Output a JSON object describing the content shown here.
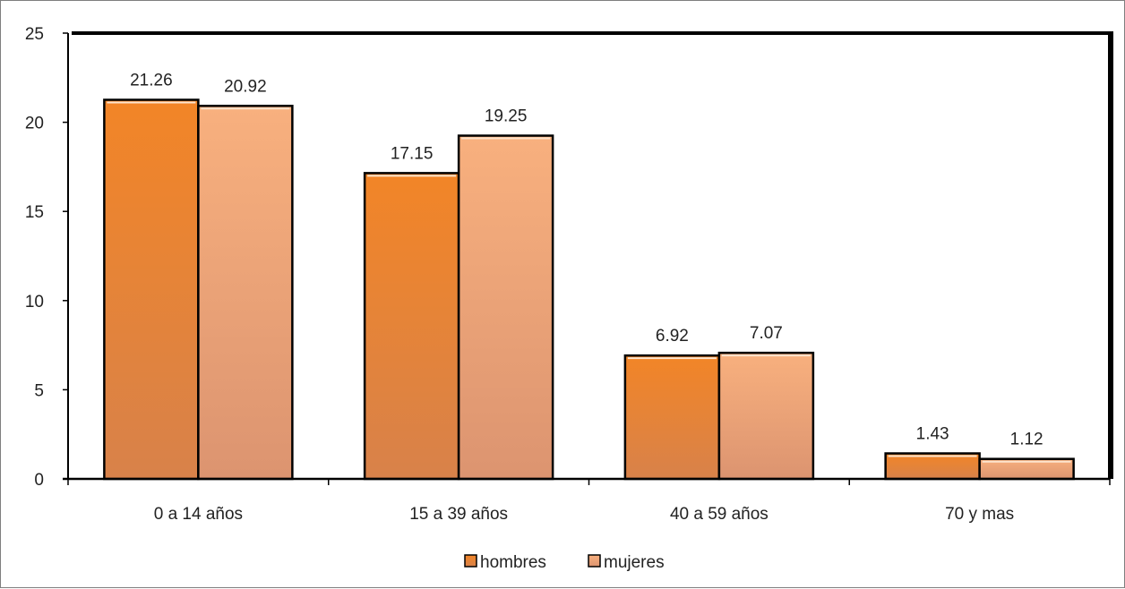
{
  "chart_data": {
    "type": "bar",
    "categories": [
      "0 a 14 años",
      "15 a 39 años",
      "40 a 59 años",
      "70 y mas"
    ],
    "series": [
      {
        "name": "hombres",
        "values": [
          21.26,
          17.15,
          6.92,
          1.43
        ],
        "color": "#F28527",
        "color_dark": "#D8824A"
      },
      {
        "name": "mujeres",
        "values": [
          20.92,
          19.25,
          7.07,
          1.12
        ],
        "color": "#F8B07E",
        "color_dark": "#DC9470"
      }
    ],
    "data_labels": [
      [
        "21.26",
        "17.15",
        "6.92",
        "1.43"
      ],
      [
        "20.92",
        "19.25",
        "7.07",
        "1.12"
      ]
    ],
    "y_ticks": [
      "0",
      "5",
      "10",
      "15",
      "20",
      "25"
    ],
    "ylim": [
      0,
      25
    ],
    "grid": false,
    "legend_position": "bottom"
  }
}
